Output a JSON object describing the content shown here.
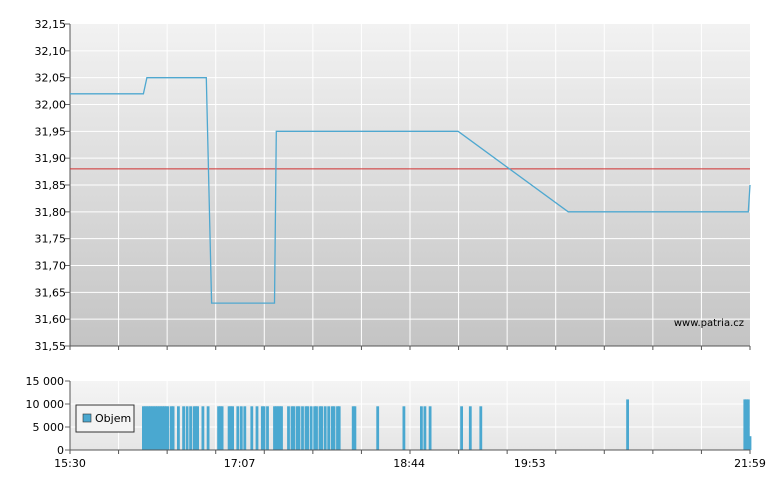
{
  "colors": {
    "price_line": "#4fa8d0",
    "reference_line": "#d03030",
    "volume_bar": "#4aa8d0",
    "grid": "#ffffff",
    "panel_top": "#f2f2f2",
    "panel_bottom": "#c4c4c4"
  },
  "chart_data": [
    {
      "type": "line",
      "ylim": [
        31.55,
        32.15
      ],
      "y_ticks": [
        "32,15",
        "32,10",
        "32,05",
        "32,00",
        "31,95",
        "31,90",
        "31,85",
        "31,80",
        "31,75",
        "31,70",
        "31,65",
        "31,60",
        "31,55"
      ],
      "y_tick_values": [
        32.15,
        32.1,
        32.05,
        32.0,
        31.95,
        31.9,
        31.85,
        31.8,
        31.75,
        31.7,
        31.65,
        31.6,
        31.55
      ],
      "xlim": [
        "15:30",
        "21:59"
      ],
      "reference_value": 31.88,
      "grid": true,
      "watermark": "www.patria.cz",
      "series": [
        {
          "x": [
            "15:30",
            "16:12",
            "16:14",
            "16:48",
            "16:51",
            "17:27",
            "17:28",
            "19:12",
            "20:15",
            "21:58",
            "21:59"
          ],
          "y": [
            32.02,
            32.02,
            32.05,
            32.05,
            31.63,
            31.63,
            31.95,
            31.95,
            31.8,
            31.8,
            31.85
          ]
        }
      ]
    },
    {
      "type": "bar",
      "ylim": [
        0,
        15000
      ],
      "y_ticks": [
        "15 000",
        "10 000",
        "5 000",
        "0"
      ],
      "y_tick_values": [
        15000,
        10000,
        5000,
        0
      ],
      "x_ticks": [
        "15:30",
        "17:07",
        "18:44",
        "19:53",
        "21:59"
      ],
      "legend": "Objem",
      "series": [
        {
          "name": "Objem",
          "x": [
            "16:12",
            "16:13",
            "16:14",
            "16:15",
            "16:16",
            "16:17",
            "16:18",
            "16:19",
            "16:20",
            "16:21",
            "16:22",
            "16:23",
            "16:24",
            "16:25",
            "16:26",
            "16:28",
            "16:29",
            "16:32",
            "16:35",
            "16:37",
            "16:39",
            "16:41",
            "16:42",
            "16:43",
            "16:46",
            "16:49",
            "16:55",
            "16:56",
            "16:57",
            "17:01",
            "17:02",
            "17:03",
            "17:06",
            "17:08",
            "17:10",
            "17:14",
            "17:17",
            "17:20",
            "17:21",
            "17:23",
            "17:27",
            "17:28",
            "17:29",
            "17:30",
            "17:31",
            "17:35",
            "17:37",
            "17:38",
            "17:40",
            "17:41",
            "17:43",
            "17:45",
            "17:46",
            "17:48",
            "17:50",
            "17:51",
            "17:53",
            "17:54",
            "17:56",
            "17:58",
            "18:00",
            "18:01",
            "18:03",
            "18:04",
            "18:12",
            "18:13",
            "18:26",
            "18:41",
            "18:51",
            "18:53",
            "18:56",
            "19:14",
            "19:19",
            "19:25",
            "20:49",
            "21:56",
            "21:57",
            "21:58",
            "21:59"
          ],
          "values": [
            9500,
            9500,
            9500,
            9500,
            9500,
            9500,
            9500,
            9500,
            9500,
            9500,
            9500,
            9500,
            9500,
            9500,
            9500,
            9500,
            9500,
            9500,
            9500,
            9500,
            9500,
            9500,
            9500,
            9500,
            9500,
            9500,
            9500,
            9500,
            9500,
            9500,
            9500,
            9500,
            9500,
            9500,
            9500,
            9500,
            9500,
            9500,
            9500,
            9500,
            9500,
            9500,
            9500,
            9500,
            9500,
            9500,
            9500,
            9500,
            9500,
            9500,
            9500,
            9500,
            9500,
            9500,
            9500,
            9500,
            9500,
            9500,
            9500,
            9500,
            9500,
            9500,
            9500,
            9500,
            9500,
            9500,
            9500,
            9500,
            9500,
            9500,
            9500,
            9500,
            9500,
            9500,
            11000,
            11000,
            11000,
            11000,
            3000
          ]
        }
      ]
    }
  ]
}
